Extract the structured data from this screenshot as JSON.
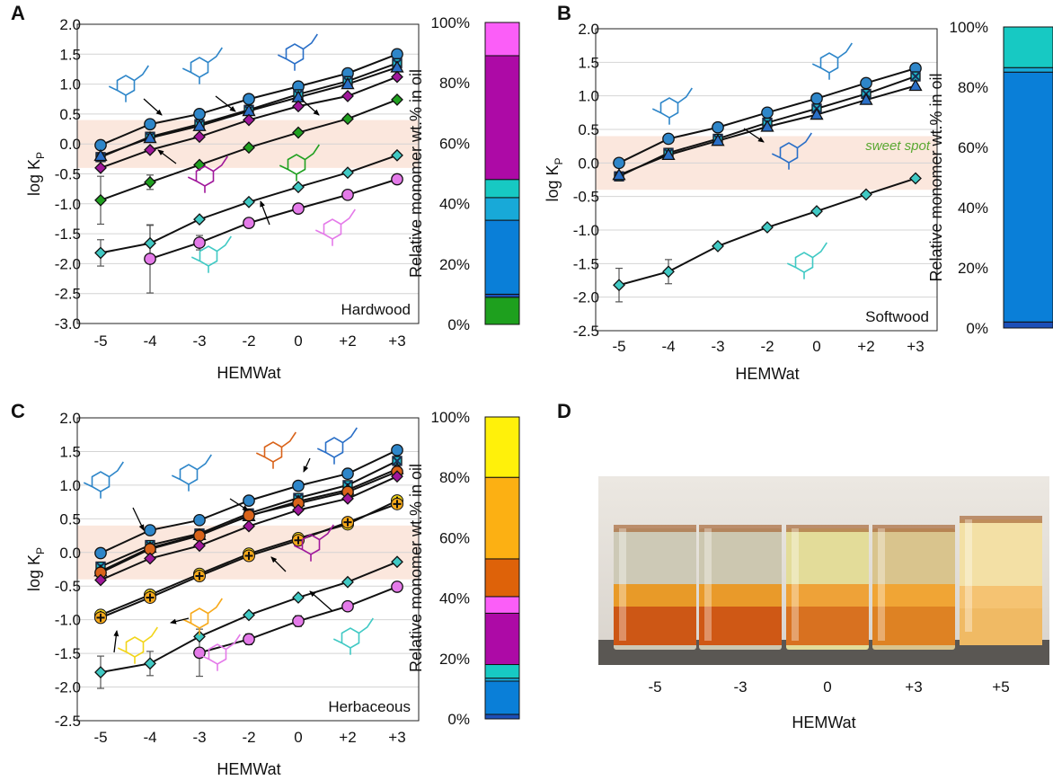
{
  "panel_letters": [
    "A",
    "B",
    "C",
    "D"
  ],
  "sweet_spot_label": "sweet spot",
  "photo": {
    "vial_labels": [
      "-5",
      "-3",
      "0",
      "+3",
      "+5"
    ],
    "xlabel": "HEMWat"
  },
  "chart_data": [
    {
      "panel": "A",
      "type": "line",
      "subtype": "scatter-with-lines",
      "title": "",
      "xlabel": "HEMWat",
      "ylabel": "log K",
      "ylabel_sub": "P",
      "categories": [
        "-5",
        "-4",
        "-3",
        "-2",
        "0",
        "+2",
        "+3"
      ],
      "yticks": [
        "-3.0",
        "-2.5",
        "-2.0",
        "-1.5",
        "-1.0",
        "-0.5",
        "0.0",
        "0.5",
        "1.0",
        "1.5",
        "2.0"
      ],
      "ylim": [
        -3.0,
        2.0
      ],
      "sweet_spot": [
        -0.4,
        0.4
      ],
      "annotation": "Hardwood",
      "grid": "horizontal",
      "series": [
        {
          "marker": "circle",
          "color": "#2e86c9",
          "values": [
            -0.02,
            0.33,
            0.5,
            0.75,
            0.96,
            1.18,
            1.5
          ]
        },
        {
          "marker": "cross-square",
          "color": "#1fb5c9",
          "values": [
            -0.22,
            0.12,
            0.33,
            0.57,
            0.83,
            1.05,
            1.35
          ]
        },
        {
          "marker": "triangle",
          "color": "#2a6fc7",
          "values": [
            -0.2,
            0.1,
            0.3,
            0.55,
            0.78,
            1.0,
            1.28
          ]
        },
        {
          "marker": "diamond",
          "color": "#a0179b",
          "values": [
            -0.4,
            -0.1,
            0.12,
            0.4,
            0.63,
            0.8,
            1.12
          ]
        },
        {
          "marker": "diamond",
          "color": "#20a020",
          "values": [
            -0.94,
            -0.64,
            -0.35,
            -0.06,
            0.19,
            0.42,
            0.74
          ]
        },
        {
          "marker": "diamond",
          "color": "#40c9c4",
          "values": [
            -1.82,
            -1.66,
            -1.26,
            -0.97,
            -0.72,
            -0.48,
            -0.19
          ]
        },
        {
          "marker": "circle",
          "color": "#e47ae9",
          "values": [
            null,
            -1.92,
            -1.65,
            -1.32,
            -1.08,
            -0.85,
            -0.59
          ]
        }
      ],
      "error_bars": [
        {
          "series": 4,
          "index": 0,
          "err": 0.4
        },
        {
          "series": 4,
          "index": 1,
          "err": 0.12
        },
        {
          "series": 5,
          "index": 0,
          "err": 0.22
        },
        {
          "series": 5,
          "index": 1,
          "err": 0.3
        },
        {
          "series": 6,
          "index": 1,
          "err": 0.57
        },
        {
          "series": 6,
          "index": 2,
          "err": 0.12
        }
      ]
    },
    {
      "panel": "A-bar",
      "type": "bar",
      "subtype": "stacked-100",
      "ylabel": "Relative monomer wt.% in oil",
      "yticks": [
        "0%",
        "20%",
        "40%",
        "60%",
        "80%",
        "100%"
      ],
      "ylim": [
        0,
        100
      ],
      "segments": [
        {
          "color": "#1ea01e",
          "value": 9
        },
        {
          "color": "#1d4fb8",
          "value": 1
        },
        {
          "color": "#0a7fd8",
          "value": 24.5
        },
        {
          "color": "#18a9d8",
          "value": 7.5
        },
        {
          "color": "#17c9c3",
          "value": 6
        },
        {
          "color": "#ad0aa6",
          "value": 41
        },
        {
          "color": "#fb5ef8",
          "value": 11
        }
      ]
    },
    {
      "panel": "B",
      "type": "line",
      "subtype": "scatter-with-lines",
      "title": "",
      "xlabel": "HEMWat",
      "ylabel": "log K",
      "ylabel_sub": "P",
      "categories": [
        "-5",
        "-4",
        "-3",
        "-2",
        "0",
        "+2",
        "+3"
      ],
      "yticks": [
        "-2.5",
        "-2.0",
        "-1.5",
        "-1.0",
        "-0.5",
        "0.0",
        "0.5",
        "1.0",
        "1.5",
        "2.0"
      ],
      "ylim": [
        -2.5,
        2.0
      ],
      "sweet_spot": [
        -0.4,
        0.4
      ],
      "annotation": "Softwood",
      "grid": "horizontal",
      "series": [
        {
          "marker": "circle",
          "color": "#2e86c9",
          "values": [
            0.0,
            0.36,
            0.53,
            0.75,
            0.96,
            1.19,
            1.41
          ]
        },
        {
          "marker": "cross-square",
          "color": "#1fb5c9",
          "values": [
            -0.2,
            0.15,
            0.36,
            0.6,
            0.81,
            1.03,
            1.29
          ]
        },
        {
          "marker": "triangle",
          "color": "#2a6fc7",
          "values": [
            -0.18,
            0.12,
            0.33,
            0.54,
            0.72,
            0.94,
            1.15
          ]
        },
        {
          "marker": "diamond",
          "color": "#40c9c4",
          "values": [
            -1.82,
            -1.62,
            -1.24,
            -0.96,
            -0.72,
            -0.47,
            -0.23
          ]
        }
      ],
      "error_bars": [
        {
          "series": 3,
          "index": 0,
          "err": 0.25
        },
        {
          "series": 3,
          "index": 1,
          "err": 0.18
        }
      ]
    },
    {
      "panel": "B-bar",
      "type": "bar",
      "subtype": "stacked-100",
      "ylabel": "Relative monomer wt.% in oil",
      "yticks": [
        "0%",
        "20%",
        "40%",
        "60%",
        "80%",
        "100%"
      ],
      "ylim": [
        0,
        100
      ],
      "segments": [
        {
          "color": "#1d4fb8",
          "value": 2
        },
        {
          "color": "#0a7fd8",
          "value": 83
        },
        {
          "color": "#18a9d8",
          "value": 1.5
        },
        {
          "color": "#17c9c3",
          "value": 13.5
        }
      ]
    },
    {
      "panel": "C",
      "type": "line",
      "subtype": "scatter-with-lines",
      "title": "",
      "xlabel": "HEMWat",
      "ylabel": "log K",
      "ylabel_sub": "P",
      "categories": [
        "-5",
        "-4",
        "-3",
        "-2",
        "0",
        "+2",
        "+3"
      ],
      "yticks": [
        "-2.5",
        "-2.0",
        "-1.5",
        "-1.0",
        "-0.5",
        "0.0",
        "0.5",
        "1.0",
        "1.5",
        "2.0"
      ],
      "ylim": [
        -2.5,
        2.0
      ],
      "sweet_spot": [
        -0.4,
        0.4
      ],
      "annotation": "Herbaceous",
      "grid": "horizontal",
      "series": [
        {
          "marker": "circle",
          "color": "#2e86c9",
          "values": [
            -0.01,
            0.33,
            0.48,
            0.77,
            0.99,
            1.17,
            1.52
          ]
        },
        {
          "marker": "cross-square",
          "color": "#1fb5c9",
          "values": [
            -0.21,
            0.11,
            0.28,
            0.58,
            0.81,
            1.0,
            1.36
          ]
        },
        {
          "marker": "triangle",
          "color": "#2a6fc7",
          "values": [
            -0.28,
            0.07,
            0.26,
            0.54,
            0.76,
            0.93,
            1.24
          ]
        },
        {
          "marker": "circle",
          "color": "#d9631a",
          "values": [
            -0.3,
            0.05,
            0.25,
            0.55,
            0.73,
            0.9,
            1.2
          ]
        },
        {
          "marker": "diamond",
          "color": "#a0179b",
          "values": [
            -0.41,
            -0.09,
            0.1,
            0.39,
            0.63,
            0.8,
            1.13
          ]
        },
        {
          "marker": "plus-circle",
          "color": "#f2d51a",
          "values": [
            -0.93,
            -0.63,
            -0.32,
            -0.02,
            0.21,
            0.42,
            0.77
          ]
        },
        {
          "marker": "plus-circle",
          "color": "#f7a91a",
          "values": [
            -0.97,
            -0.67,
            -0.35,
            -0.05,
            0.18,
            0.45,
            0.72
          ]
        },
        {
          "marker": "diamond",
          "color": "#40c9c4",
          "values": [
            -1.78,
            -1.65,
            -1.25,
            -0.93,
            -0.67,
            -0.44,
            -0.14
          ]
        },
        {
          "marker": "circle",
          "color": "#e47ae9",
          "values": [
            null,
            null,
            -1.49,
            -1.29,
            -1.02,
            -0.8,
            -0.51
          ]
        }
      ],
      "error_bars": [
        {
          "series": 7,
          "index": 0,
          "err": 0.24
        },
        {
          "series": 7,
          "index": 1,
          "err": 0.18
        },
        {
          "series": 8,
          "index": 2,
          "err": 0.35
        },
        {
          "series": 8,
          "index": 3,
          "err": 0.08
        },
        {
          "series": 8,
          "index": 4,
          "err": 0.08
        }
      ]
    },
    {
      "panel": "C-bar",
      "type": "bar",
      "subtype": "stacked-100",
      "ylabel": "Relative monomer wt.% in oil",
      "yticks": [
        "0%",
        "20%",
        "40%",
        "60%",
        "80%",
        "100%"
      ],
      "ylim": [
        0,
        100
      ],
      "segments": [
        {
          "color": "#1d4fb8",
          "value": 1.5
        },
        {
          "color": "#0a7fd8",
          "value": 11
        },
        {
          "color": "#18a9d8",
          "value": 1
        },
        {
          "color": "#17c9c3",
          "value": 4.5
        },
        {
          "color": "#ad0aa6",
          "value": 17
        },
        {
          "color": "#fb5ef8",
          "value": 5.5
        },
        {
          "color": "#de6209",
          "value": 12.5
        },
        {
          "color": "#fcb013",
          "value": 27
        },
        {
          "color": "#fff10a",
          "value": 20
        }
      ]
    }
  ]
}
